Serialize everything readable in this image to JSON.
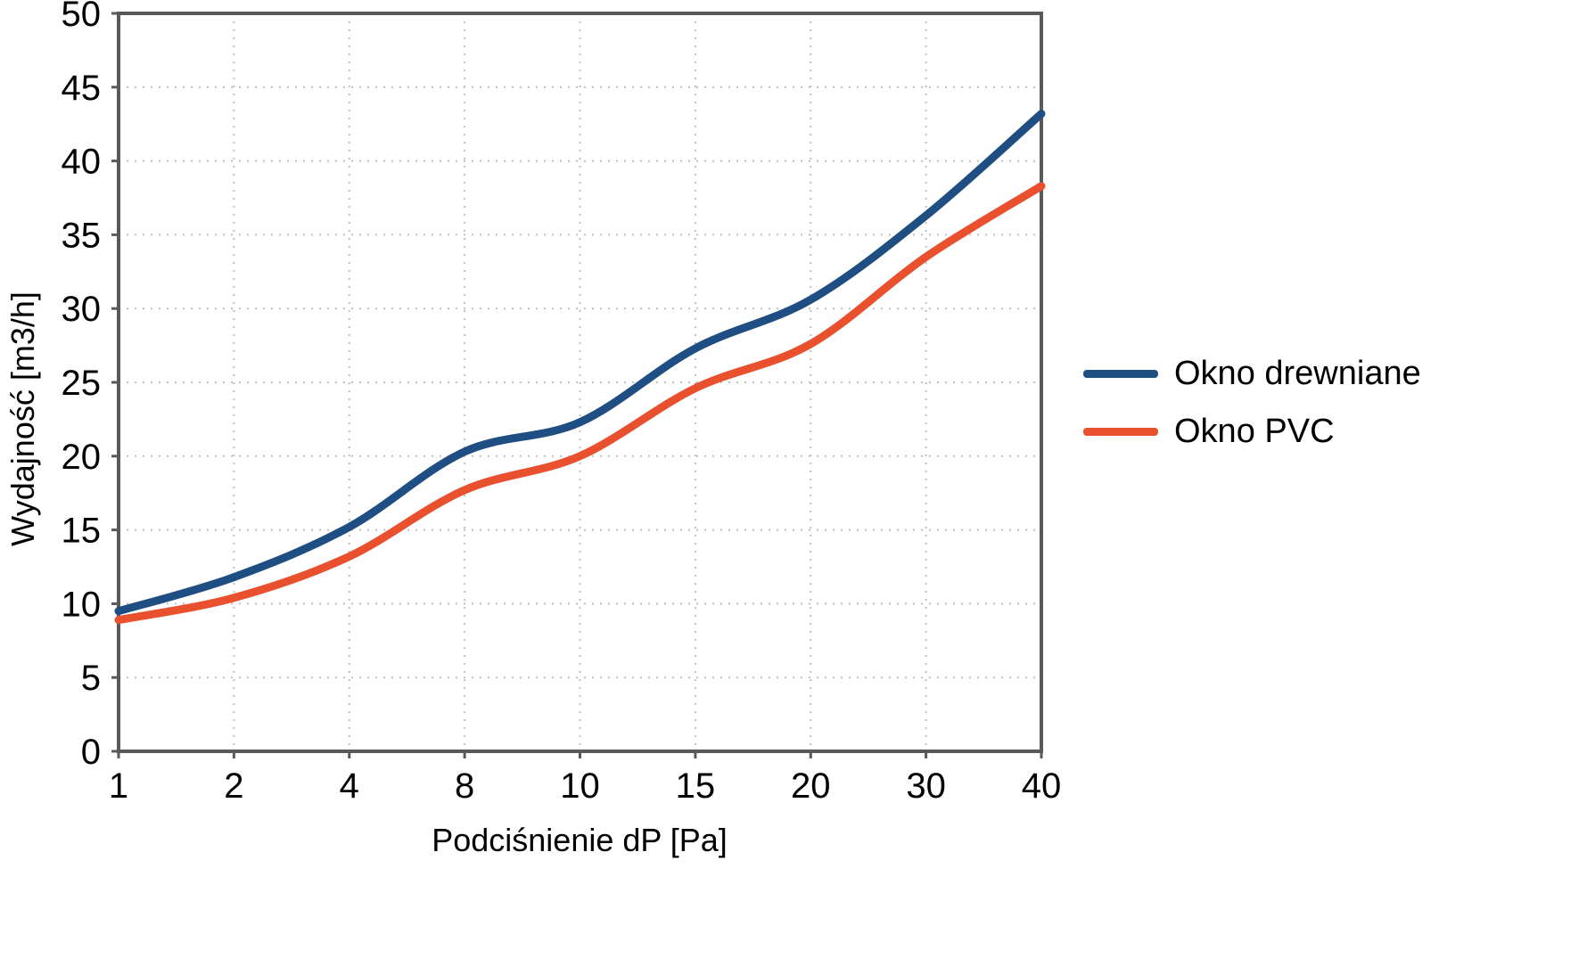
{
  "chart_data": {
    "type": "line",
    "title": "",
    "xlabel": "Podciśnienie dP [Pa]",
    "ylabel": "Wydajność [m3/h]",
    "categories": [
      "1",
      "2",
      "4",
      "8",
      "10",
      "15",
      "20",
      "30",
      "40"
    ],
    "yticks": [
      0,
      5,
      10,
      15,
      20,
      25,
      30,
      35,
      40,
      45,
      50
    ],
    "ylim": [
      0,
      50
    ],
    "grid": true,
    "grid_style": "dotted",
    "legend_position": "right",
    "axis_color": "#595959",
    "grid_color": "#bfbfbf",
    "series": [
      {
        "name": "Okno drewniane",
        "color": "#1F4E82",
        "values": [
          9.5,
          11.8,
          15.2,
          20.3,
          22.3,
          27.3,
          30.6,
          36.3,
          43.2
        ]
      },
      {
        "name": "Okno PVC",
        "color": "#E8502E",
        "values": [
          8.9,
          10.4,
          13.2,
          17.7,
          20.0,
          24.6,
          27.6,
          33.5,
          38.3
        ]
      }
    ]
  }
}
